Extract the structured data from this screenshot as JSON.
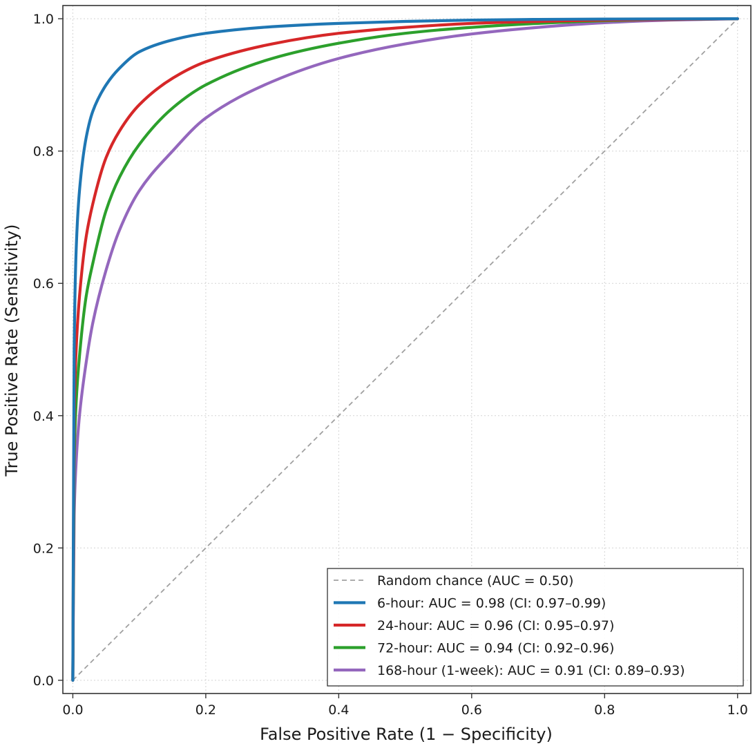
{
  "chart_data": {
    "type": "line",
    "xlabel": "False Positive Rate (1 − Specificity)",
    "ylabel": "True Positive Rate (Sensitivity)",
    "xlim": [
      -0.015,
      1.02
    ],
    "ylim": [
      -0.02,
      1.02
    ],
    "x_ticks": [
      0.0,
      0.2,
      0.4,
      0.6,
      0.8,
      1.0
    ],
    "y_ticks": [
      0.0,
      0.2,
      0.4,
      0.6,
      0.8,
      1.0
    ],
    "x_tick_labels": [
      "0.0",
      "0.2",
      "0.4",
      "0.6",
      "0.8",
      "1.0"
    ],
    "y_tick_labels": [
      "0.0",
      "0.2",
      "0.4",
      "0.6",
      "0.8",
      "1.0"
    ],
    "grid": true,
    "legend_position": "lower-right",
    "reference_line": {
      "name": "Random chance (AUC = 0.50)",
      "color": "#a0a0a0",
      "x": [
        0,
        1
      ],
      "y": [
        0,
        1
      ]
    },
    "series": [
      {
        "name": "6-hour: AUC = 0.98 (CI: 0.97–0.99)",
        "color": "#1f77b4",
        "x": [
          0,
          0.002,
          0.005,
          0.01,
          0.02,
          0.03,
          0.05,
          0.07,
          0.1,
          0.15,
          0.2,
          0.3,
          0.4,
          0.5,
          0.6,
          0.7,
          0.8,
          0.9,
          1.0
        ],
        "y": [
          0,
          0.5,
          0.65,
          0.74,
          0.82,
          0.86,
          0.9,
          0.925,
          0.95,
          0.968,
          0.978,
          0.988,
          0.993,
          0.996,
          0.998,
          0.999,
          0.9995,
          0.9998,
          1.0
        ]
      },
      {
        "name": "24-hour: AUC = 0.96 (CI: 0.95–0.97)",
        "color": "#d62728",
        "x": [
          0,
          0.002,
          0.005,
          0.01,
          0.02,
          0.03,
          0.05,
          0.07,
          0.1,
          0.15,
          0.2,
          0.3,
          0.4,
          0.5,
          0.6,
          0.7,
          0.8,
          0.9,
          1.0
        ],
        "y": [
          0,
          0.4,
          0.5,
          0.58,
          0.67,
          0.72,
          0.79,
          0.83,
          0.87,
          0.91,
          0.935,
          0.962,
          0.978,
          0.987,
          0.993,
          0.996,
          0.998,
          0.999,
          1.0
        ]
      },
      {
        "name": "72-hour: AUC = 0.94 (CI: 0.92–0.96)",
        "color": "#2ca02c",
        "x": [
          0,
          0.002,
          0.005,
          0.01,
          0.02,
          0.03,
          0.05,
          0.07,
          0.1,
          0.15,
          0.2,
          0.3,
          0.4,
          0.5,
          0.6,
          0.7,
          0.8,
          0.9,
          1.0
        ],
        "y": [
          0,
          0.33,
          0.42,
          0.49,
          0.58,
          0.63,
          0.71,
          0.76,
          0.81,
          0.865,
          0.9,
          0.94,
          0.963,
          0.978,
          0.987,
          0.993,
          0.997,
          0.999,
          1.0
        ]
      },
      {
        "name": "168-hour (1-week): AUC = 0.91 (CI: 0.89–0.93)",
        "color": "#9467bd",
        "x": [
          0,
          0.002,
          0.005,
          0.01,
          0.02,
          0.03,
          0.05,
          0.07,
          0.1,
          0.15,
          0.2,
          0.3,
          0.4,
          0.5,
          0.6,
          0.7,
          0.8,
          0.9,
          1.0
        ],
        "y": [
          0,
          0.25,
          0.33,
          0.4,
          0.48,
          0.54,
          0.62,
          0.68,
          0.74,
          0.8,
          0.85,
          0.905,
          0.94,
          0.962,
          0.977,
          0.987,
          0.994,
          0.998,
          1.0
        ]
      }
    ]
  }
}
